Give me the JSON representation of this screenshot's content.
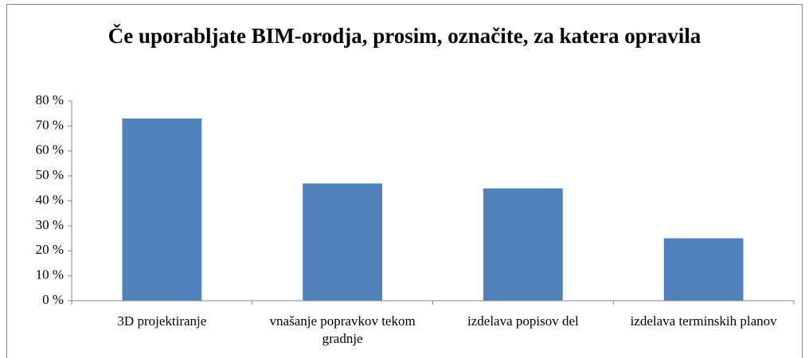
{
  "chart_data": {
    "type": "bar",
    "title": "Če uporabljate BIM-orodja, prosim, označite, za katera opravila",
    "categories": [
      "3D projektiranje",
      "vnašanje popravkov tekom gradnje",
      "izdelava popisov del",
      "izdelava terminskih planov"
    ],
    "values": [
      73,
      47,
      45,
      25
    ],
    "color": "#4f81bd",
    "ylim": [
      0,
      80
    ],
    "yticks": [
      {
        "value": 0,
        "label": "0 %"
      },
      {
        "value": 10,
        "label": "10 %"
      },
      {
        "value": 20,
        "label": "20 %"
      },
      {
        "value": 30,
        "label": "30 %"
      },
      {
        "value": 40,
        "label": "40 %"
      },
      {
        "value": 50,
        "label": "50 %"
      },
      {
        "value": 60,
        "label": "60 %"
      },
      {
        "value": 70,
        "label": "70 %"
      },
      {
        "value": 80,
        "label": "80 %"
      }
    ],
    "grid": false
  }
}
